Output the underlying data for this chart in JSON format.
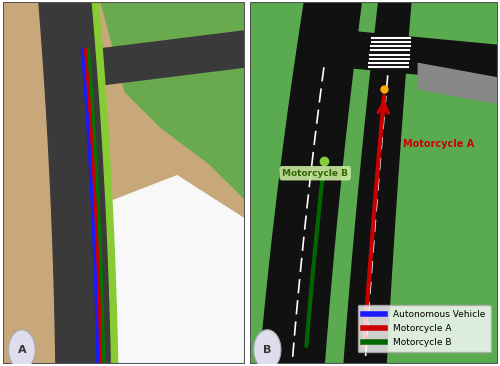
{
  "fig_width": 5.0,
  "fig_height": 3.66,
  "dpi": 100,
  "background_color": "#ffffff",
  "border_color": "#555555",
  "panel_A": {
    "label": "A",
    "bg_road_color": "#3a3a3a",
    "bg_green_color": "#6aaa4f",
    "bg_tan_color": "#c8a87a",
    "bg_white_color": "#f8f8f8",
    "road_stripe_color": "#ffffff",
    "trajectory_blue": "#1a1aff",
    "trajectory_red": "#cc0000",
    "trajectory_green": "#007700",
    "green_strip_color": "#88cc33"
  },
  "panel_B": {
    "label": "B",
    "bg_green_color": "#5aaa50",
    "bg_road_color": "#111111",
    "road_stripe_color": "#ffffff",
    "trajectory_red": "#cc0000",
    "trajectory_green": "#006600",
    "intersection_gray": "#888888",
    "arrow_A_label": "Motorcycle A",
    "arrow_B_label": "Motorcycle B",
    "label_A_color": "#cc0000",
    "label_B_color": "#336600",
    "label_B_bg": "#c8e8a0"
  },
  "legend_items": [
    {
      "label": "Autonomous Vehicle",
      "color": "#1a1aff"
    },
    {
      "label": "Motorcycle A",
      "color": "#cc0000"
    },
    {
      "label": "Motorcycle B",
      "color": "#006600"
    }
  ]
}
